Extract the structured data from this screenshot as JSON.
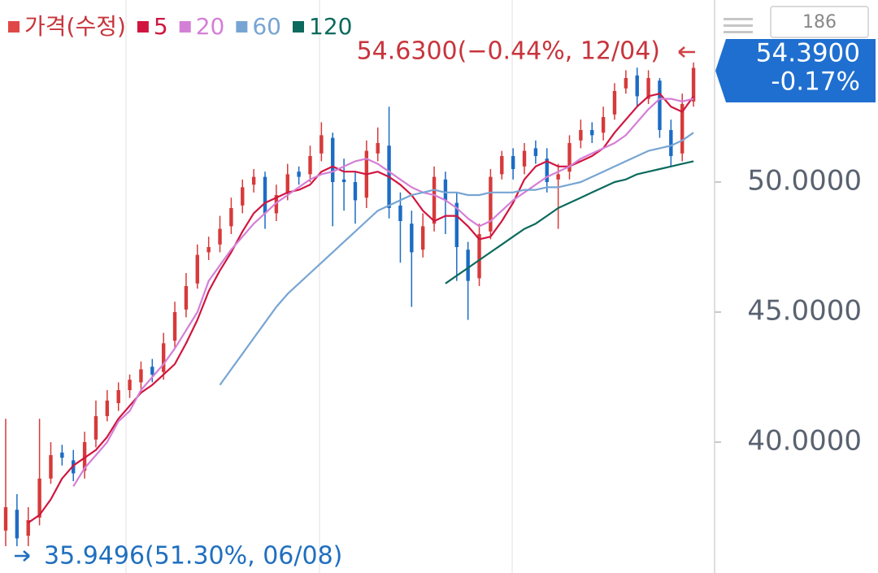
{
  "chart_data": {
    "type": "candlestick",
    "ylim": [
      35,
      57
    ],
    "yticks": [
      {
        "value": 40,
        "label": "40.0000"
      },
      {
        "value": 45,
        "label": "45.0000"
      },
      {
        "value": 50,
        "label": "50.0000"
      }
    ],
    "up_color": "#d63a3a",
    "down_color": "#1c6cc4",
    "count_label": "186",
    "high_label": "54.6300(−0.44%, 12/04)",
    "low_label": "35.9496(51.30%, 06/08)",
    "last_price": "54.3900",
    "last_change": "-0.17%",
    "series": [
      {
        "name": "가격(수정)",
        "color": "#e04848",
        "open": [
          36.6,
          37.4,
          36.4,
          37.1,
          38.6,
          39.6,
          39.3,
          38.9,
          40.1,
          41.0,
          41.5,
          42.0,
          42.3,
          42.9,
          42.7,
          43.9,
          45.1,
          46.1,
          47.3,
          47.6,
          48.3,
          49.1,
          49.9,
          50.2,
          48.8,
          49.6,
          50.4,
          50.3,
          51.1,
          51.7,
          50.1,
          50.0,
          49.4,
          51.1,
          51.4,
          49.1,
          48.4,
          47.4,
          48.4,
          50.1,
          49.2,
          47.4,
          46.3,
          48.1,
          50.3,
          51.0,
          50.6,
          51.3,
          50.9,
          50.1,
          50.4,
          51.6,
          52.0,
          51.9,
          52.6,
          53.6,
          54.1,
          53.2,
          53.9,
          52.0,
          51.1,
          53.1
        ],
        "high": [
          40.9,
          38.0,
          37.5,
          40.9,
          40.0,
          39.9,
          39.7,
          40.4,
          41.6,
          42.0,
          42.3,
          42.6,
          43.1,
          43.2,
          44.2,
          45.4,
          46.5,
          47.6,
          47.9,
          48.7,
          49.4,
          50.1,
          50.5,
          50.4,
          49.9,
          50.7,
          50.6,
          51.4,
          52.3,
          51.9,
          50.9,
          50.4,
          51.6,
          52.1,
          52.9,
          49.6,
          48.9,
          48.8,
          50.6,
          50.4,
          49.6,
          47.7,
          48.4,
          50.5,
          51.2,
          51.3,
          51.5,
          51.6,
          51.3,
          50.7,
          51.8,
          52.4,
          52.3,
          52.9,
          53.8,
          54.3,
          54.4,
          54.3,
          54.0,
          52.4,
          53.4,
          54.6
        ],
        "low": [
          36.0,
          36.0,
          36.0,
          36.8,
          38.4,
          39.1,
          38.5,
          38.6,
          39.8,
          40.8,
          41.2,
          41.7,
          42.0,
          42.3,
          42.4,
          43.6,
          44.8,
          45.9,
          47.0,
          47.3,
          48.0,
          48.8,
          49.6,
          48.2,
          48.5,
          49.3,
          49.9,
          50.0,
          50.8,
          48.3,
          48.9,
          48.4,
          49.0,
          50.8,
          48.6,
          46.9,
          45.2,
          47.1,
          48.1,
          48.0,
          46.2,
          44.7,
          46.0,
          47.8,
          50.1,
          50.1,
          50.3,
          50.7,
          49.6,
          48.2,
          50.1,
          51.3,
          51.5,
          51.6,
          52.4,
          53.4,
          52.9,
          53.0,
          51.7,
          50.6,
          50.8,
          52.9
        ],
        "close": [
          37.5,
          36.3,
          37.0,
          38.6,
          39.5,
          39.4,
          38.8,
          40.0,
          41.0,
          41.6,
          42.0,
          42.4,
          42.8,
          42.6,
          43.8,
          45.0,
          46.0,
          47.2,
          47.5,
          48.2,
          49.0,
          49.8,
          50.2,
          48.8,
          49.5,
          50.3,
          50.2,
          51.0,
          51.8,
          50.0,
          50.0,
          49.3,
          51.2,
          51.5,
          49.0,
          48.5,
          47.3,
          48.3,
          50.2,
          49.3,
          47.5,
          46.2,
          48.0,
          50.2,
          51.0,
          50.5,
          51.2,
          51.0,
          50.0,
          50.3,
          51.5,
          52.0,
          51.8,
          52.5,
          53.5,
          54.0,
          53.3,
          54.0,
          52.0,
          51.0,
          53.0,
          54.39
        ]
      },
      {
        "name": "5",
        "color": "#d0163f",
        "values": [
          null,
          null,
          36.9,
          37.2,
          37.8,
          38.6,
          39.1,
          39.4,
          39.7,
          40.2,
          40.9,
          41.4,
          41.9,
          42.2,
          42.6,
          43.0,
          43.8,
          44.7,
          45.8,
          46.6,
          47.3,
          48.1,
          48.8,
          49.2,
          49.4,
          49.6,
          49.7,
          49.9,
          50.4,
          50.6,
          50.4,
          50.4,
          50.3,
          50.4,
          50.2,
          49.9,
          49.5,
          48.9,
          48.5,
          48.7,
          48.7,
          48.3,
          47.8,
          47.9,
          48.5,
          49.2,
          50.1,
          50.6,
          50.8,
          50.6,
          50.6,
          50.8,
          51.0,
          51.3,
          51.9,
          52.4,
          52.9,
          53.3,
          53.4,
          52.9,
          52.7,
          53.3
        ]
      },
      {
        "name": "20",
        "color": "#d47fd6",
        "values": [
          null,
          null,
          null,
          null,
          null,
          null,
          38.3,
          39.0,
          39.5,
          40.0,
          40.8,
          41.2,
          42.0,
          42.5,
          43.0,
          43.6,
          44.3,
          45.0,
          46.2,
          46.8,
          47.4,
          47.9,
          48.4,
          48.8,
          49.2,
          49.5,
          49.8,
          50.1,
          50.3,
          50.4,
          50.6,
          50.8,
          50.9,
          50.7,
          50.4,
          50.1,
          49.8,
          49.6,
          49.5,
          49.3,
          49.0,
          48.6,
          48.3,
          48.5,
          48.9,
          49.3,
          49.6,
          49.9,
          50.2,
          50.4,
          50.6,
          50.9,
          51.1,
          51.3,
          51.5,
          51.8,
          52.3,
          52.8,
          53.2,
          53.2,
          53.1,
          53.2
        ]
      },
      {
        "name": "60",
        "color": "#77a5d3",
        "values": [
          null,
          null,
          null,
          null,
          null,
          null,
          null,
          null,
          null,
          null,
          null,
          null,
          null,
          null,
          null,
          null,
          null,
          null,
          null,
          42.2,
          42.8,
          43.4,
          44.0,
          44.6,
          45.2,
          45.7,
          46.1,
          46.5,
          46.9,
          47.3,
          47.7,
          48.1,
          48.5,
          48.9,
          49.1,
          49.3,
          49.5,
          49.6,
          49.7,
          49.6,
          49.6,
          49.5,
          49.5,
          49.6,
          49.6,
          49.6,
          49.7,
          49.7,
          49.8,
          49.8,
          49.9,
          50.0,
          50.2,
          50.4,
          50.6,
          50.8,
          51.0,
          51.2,
          51.3,
          51.4,
          51.6,
          51.9
        ]
      },
      {
        "name": "120",
        "color": "#0b6a5d",
        "values": [
          null,
          null,
          null,
          null,
          null,
          null,
          null,
          null,
          null,
          null,
          null,
          null,
          null,
          null,
          null,
          null,
          null,
          null,
          null,
          null,
          null,
          null,
          null,
          null,
          null,
          null,
          null,
          null,
          null,
          null,
          null,
          null,
          null,
          null,
          null,
          null,
          null,
          null,
          null,
          46.1,
          46.4,
          46.7,
          47.0,
          47.3,
          47.6,
          47.9,
          48.2,
          48.4,
          48.7,
          49.0,
          49.2,
          49.4,
          49.6,
          49.8,
          50.0,
          50.1,
          50.3,
          50.4,
          50.5,
          50.6,
          50.7,
          50.8
        ]
      }
    ]
  }
}
